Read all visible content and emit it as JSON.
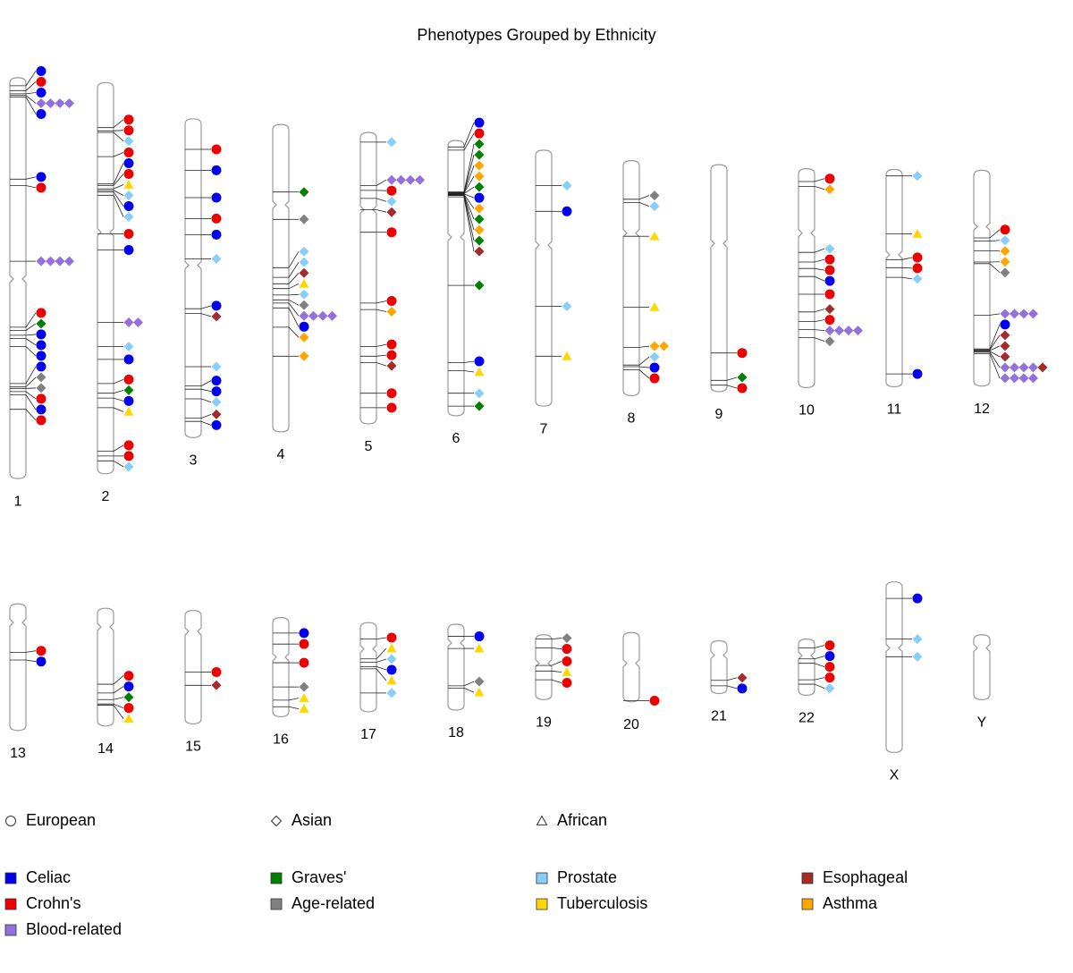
{
  "title": "Phenotypes Grouped by Ethnicity",
  "ethnicities": [
    {
      "name": "European",
      "shape": "circle"
    },
    {
      "name": "Asian",
      "shape": "diamond"
    },
    {
      "name": "African",
      "shape": "triangle"
    }
  ],
  "phenotypes": [
    {
      "name": "Celiac",
      "color": "#0000ee"
    },
    {
      "name": "Graves'",
      "color": "#008000"
    },
    {
      "name": "Prostate",
      "color": "#87cefa"
    },
    {
      "name": "Esophageal",
      "color": "#a52a2a"
    },
    {
      "name": "Crohn's",
      "color": "#ee0000"
    },
    {
      "name": "Age-related",
      "color": "#808080"
    },
    {
      "name": "Tuberculosis",
      "color": "#ffd700"
    },
    {
      "name": "Asthma",
      "color": "#ffa500"
    },
    {
      "name": "Blood-related",
      "color": "#9370db"
    }
  ],
  "chromosomes": [
    {
      "name": "1",
      "length": 249,
      "centromere": 125,
      "hits": [
        [
          5,
          0,
          0
        ],
        [
          8,
          0,
          4
        ],
        [
          10,
          0,
          0
        ],
        [
          11,
          1,
          8
        ],
        [
          11,
          1,
          8
        ],
        [
          11,
          1,
          8
        ],
        [
          11,
          1,
          8
        ],
        [
          12,
          0,
          0
        ],
        [
          63,
          0,
          0
        ],
        [
          67,
          0,
          4
        ],
        [
          114,
          1,
          8
        ],
        [
          114,
          1,
          8
        ],
        [
          114,
          1,
          8
        ],
        [
          114,
          1,
          8
        ],
        [
          155,
          0,
          4
        ],
        [
          157,
          1,
          1
        ],
        [
          160,
          0,
          0
        ],
        [
          162,
          0,
          0
        ],
        [
          167,
          0,
          0
        ],
        [
          190,
          0,
          0
        ],
        [
          192,
          1,
          5
        ],
        [
          193,
          1,
          5
        ],
        [
          195,
          0,
          4
        ],
        [
          197,
          0,
          0
        ],
        [
          206,
          0,
          4
        ]
      ]
    },
    {
      "name": "2",
      "length": 243,
      "centromere": 93,
      "hits": [
        [
          28,
          0,
          4
        ],
        [
          30,
          0,
          4
        ],
        [
          31,
          1,
          2
        ],
        [
          46,
          0,
          4
        ],
        [
          63,
          0,
          0
        ],
        [
          64,
          0,
          4
        ],
        [
          66,
          2,
          6
        ],
        [
          67,
          1,
          2
        ],
        [
          68,
          0,
          0
        ],
        [
          70,
          1,
          2
        ],
        [
          94,
          0,
          4
        ],
        [
          104,
          0,
          0
        ],
        [
          149,
          1,
          8
        ],
        [
          149,
          1,
          8
        ],
        [
          164,
          1,
          2
        ],
        [
          172,
          0,
          0
        ],
        [
          187,
          0,
          4
        ],
        [
          193,
          1,
          1
        ],
        [
          196,
          0,
          0
        ],
        [
          202,
          2,
          6
        ],
        [
          229,
          0,
          4
        ],
        [
          232,
          0,
          4
        ],
        [
          235,
          1,
          2
        ]
      ]
    },
    {
      "name": "3",
      "length": 198,
      "centromere": 91,
      "hits": [
        [
          19,
          0,
          4
        ],
        [
          32,
          0,
          0
        ],
        [
          49,
          0,
          0
        ],
        [
          62,
          0,
          4
        ],
        [
          72,
          0,
          0
        ],
        [
          87,
          1,
          2
        ],
        [
          118,
          0,
          0
        ],
        [
          121,
          1,
          3
        ],
        [
          154,
          1,
          2
        ],
        [
          166,
          0,
          0
        ],
        [
          168,
          0,
          0
        ],
        [
          174,
          1,
          2
        ],
        [
          186,
          1,
          3
        ],
        [
          188,
          0,
          0
        ]
      ]
    },
    {
      "name": "4",
      "length": 191,
      "centromere": 50,
      "hits": [
        [
          42,
          1,
          1
        ],
        [
          59,
          1,
          5
        ],
        [
          89,
          1,
          2
        ],
        [
          95,
          1,
          2
        ],
        [
          99,
          1,
          3
        ],
        [
          102,
          2,
          6
        ],
        [
          106,
          1,
          2
        ],
        [
          109,
          1,
          5
        ],
        [
          111,
          1,
          8
        ],
        [
          111,
          1,
          8
        ],
        [
          111,
          1,
          8
        ],
        [
          111,
          1,
          8
        ],
        [
          114,
          0,
          0
        ],
        [
          126,
          1,
          7
        ],
        [
          144,
          1,
          7
        ]
      ]
    },
    {
      "name": "5",
      "length": 181,
      "centromere": 48,
      "hits": [
        [
          6,
          1,
          2
        ],
        [
          33,
          1,
          8
        ],
        [
          33,
          1,
          8
        ],
        [
          33,
          1,
          8
        ],
        [
          33,
          1,
          8
        ],
        [
          36,
          0,
          4
        ],
        [
          41,
          1,
          2
        ],
        [
          48,
          1,
          3
        ],
        [
          62,
          0,
          4
        ],
        [
          106,
          0,
          4
        ],
        [
          110,
          1,
          7
        ],
        [
          133,
          0,
          4
        ],
        [
          139,
          0,
          4
        ],
        [
          143,
          1,
          3
        ],
        [
          162,
          0,
          4
        ],
        [
          171,
          0,
          4
        ]
      ]
    },
    {
      "name": "6",
      "length": 171,
      "centromere": 60,
      "hits": [
        [
          4,
          0,
          0
        ],
        [
          6,
          0,
          4
        ],
        [
          32,
          1,
          1
        ],
        [
          32.3,
          1,
          1
        ],
        [
          32.5,
          1,
          7
        ],
        [
          32.7,
          1,
          7
        ],
        [
          33,
          1,
          1
        ],
        [
          33.2,
          0,
          0
        ],
        [
          33.5,
          1,
          7
        ],
        [
          33.7,
          1,
          1
        ],
        [
          34,
          1,
          7
        ],
        [
          34.2,
          1,
          1
        ],
        [
          35,
          1,
          3
        ],
        [
          90,
          1,
          1
        ],
        [
          138,
          0,
          0
        ],
        [
          143,
          2,
          6
        ],
        [
          157,
          1,
          2
        ],
        [
          165,
          1,
          1
        ]
      ]
    },
    {
      "name": "7",
      "length": 159,
      "centromere": 59,
      "hits": [
        [
          22,
          1,
          2
        ],
        [
          38,
          0,
          0
        ],
        [
          97,
          1,
          2
        ],
        [
          128,
          2,
          6
        ]
      ]
    },
    {
      "name": "8",
      "length": 146,
      "centromere": 45,
      "hits": [
        [
          24,
          1,
          5
        ],
        [
          26,
          1,
          2
        ],
        [
          47,
          2,
          6
        ],
        [
          91,
          2,
          6
        ],
        [
          116,
          1,
          7
        ],
        [
          116,
          1,
          7
        ],
        [
          127,
          1,
          2
        ],
        [
          128,
          0,
          0
        ],
        [
          130,
          0,
          4
        ]
      ]
    },
    {
      "name": "9",
      "length": 141,
      "centromere": 49,
      "hits": [
        [
          117,
          0,
          4
        ],
        [
          134,
          1,
          1
        ],
        [
          137,
          0,
          4
        ]
      ]
    },
    {
      "name": "10",
      "length": 136,
      "centromere": 40,
      "hits": [
        [
          8,
          0,
          4
        ],
        [
          11,
          1,
          7
        ],
        [
          52,
          1,
          2
        ],
        [
          58,
          0,
          4
        ],
        [
          62,
          0,
          4
        ],
        [
          67,
          0,
          0
        ],
        [
          78,
          0,
          4
        ],
        [
          89,
          1,
          3
        ],
        [
          95,
          0,
          4
        ],
        [
          100,
          1,
          8
        ],
        [
          100,
          1,
          8
        ],
        [
          100,
          1,
          8
        ],
        [
          100,
          1,
          8
        ],
        [
          105,
          1,
          5
        ]
      ]
    },
    {
      "name": "11",
      "length": 135,
      "centromere": 53,
      "hits": [
        [
          4,
          1,
          2
        ],
        [
          40,
          2,
          6
        ],
        [
          56,
          0,
          4
        ],
        [
          61,
          0,
          4
        ],
        [
          67,
          1,
          2
        ],
        [
          127,
          0,
          0
        ]
      ]
    },
    {
      "name": "12",
      "length": 134,
      "centromere": 35,
      "hits": [
        [
          42,
          0,
          4
        ],
        [
          44,
          1,
          2
        ],
        [
          50,
          1,
          7
        ],
        [
          57,
          1,
          7
        ],
        [
          58,
          1,
          5
        ],
        [
          90,
          1,
          8
        ],
        [
          90,
          1,
          8
        ],
        [
          90,
          1,
          8
        ],
        [
          90,
          1,
          8
        ],
        [
          111,
          0,
          0
        ],
        [
          111.5,
          1,
          3
        ],
        [
          112,
          1,
          3
        ],
        [
          112.5,
          1,
          3
        ],
        [
          113,
          1,
          8
        ],
        [
          113,
          1,
          8
        ],
        [
          113,
          1,
          8
        ],
        [
          113,
          1,
          8
        ],
        [
          113,
          1,
          3
        ],
        [
          114,
          1,
          8
        ],
        [
          114,
          1,
          8
        ],
        [
          114,
          1,
          8
        ],
        [
          114,
          1,
          8
        ]
      ]
    },
    {
      "name": "13",
      "length": 115,
      "centromere": 17,
      "hits": [
        [
          44,
          0,
          4
        ],
        [
          51,
          0,
          0
        ]
      ]
    },
    {
      "name": "14",
      "length": 107,
      "centromere": 17,
      "hits": [
        [
          69,
          0,
          4
        ],
        [
          77,
          0,
          0
        ],
        [
          83,
          1,
          1
        ],
        [
          87,
          0,
          4
        ],
        [
          88,
          2,
          6
        ]
      ]
    },
    {
      "name": "15",
      "length": 103,
      "centromere": 19,
      "hits": [
        [
          56,
          0,
          4
        ],
        [
          68,
          1,
          3
        ]
      ]
    },
    {
      "name": "16",
      "length": 90,
      "centromere": 36,
      "hits": [
        [
          14,
          0,
          0
        ],
        [
          24,
          0,
          4
        ],
        [
          41,
          0,
          4
        ],
        [
          63,
          1,
          5
        ],
        [
          75,
          2,
          6
        ],
        [
          81,
          2,
          6
        ]
      ]
    },
    {
      "name": "17",
      "length": 81,
      "centromere": 24,
      "hits": [
        [
          15,
          0,
          4
        ],
        [
          33,
          2,
          6
        ],
        [
          36,
          1,
          2
        ],
        [
          40,
          0,
          0
        ],
        [
          42,
          2,
          6
        ],
        [
          64,
          1,
          2
        ]
      ]
    },
    {
      "name": "18",
      "length": 78,
      "centromere": 17,
      "hits": [
        [
          11,
          0,
          0
        ],
        [
          22,
          2,
          6
        ],
        [
          56,
          1,
          5
        ],
        [
          58,
          2,
          6
        ]
      ]
    },
    {
      "name": "19",
      "length": 59,
      "centromere": 26,
      "hits": [
        [
          4,
          1,
          5
        ],
        [
          12,
          0,
          4
        ],
        [
          28,
          0,
          4
        ],
        [
          33,
          2,
          6
        ],
        [
          41,
          0,
          4
        ]
      ]
    },
    {
      "name": "20",
      "length": 63,
      "centromere": 28,
      "hits": [
        [
          62,
          0,
          4
        ]
      ]
    },
    {
      "name": "21",
      "length": 48,
      "centromere": 13,
      "hits": [
        [
          36,
          1,
          3
        ],
        [
          41,
          0,
          0
        ]
      ]
    },
    {
      "name": "22",
      "length": 51,
      "centromere": 15,
      "hits": [
        [
          8,
          0,
          4
        ],
        [
          18,
          0,
          0
        ],
        [
          22,
          0,
          4
        ],
        [
          37,
          0,
          4
        ],
        [
          41,
          1,
          2
        ]
      ]
    },
    {
      "name": "X",
      "length": 155,
      "centromere": 60,
      "hits": [
        [
          15,
          0,
          0
        ],
        [
          52,
          1,
          2
        ],
        [
          68,
          1,
          2
        ]
      ]
    },
    {
      "name": "Y",
      "length": 59,
      "centromere": 12,
      "hits": []
    }
  ]
}
